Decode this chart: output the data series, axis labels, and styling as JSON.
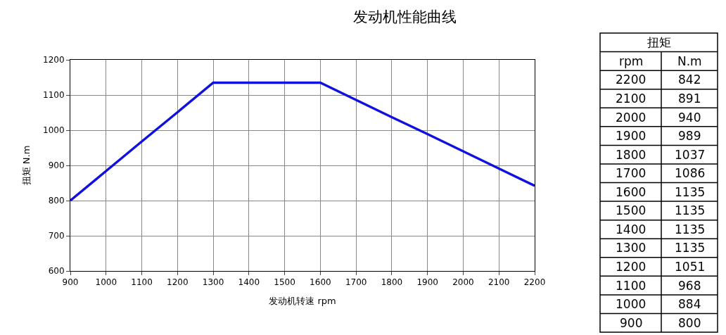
{
  "chart_data": [
    {
      "type": "line",
      "title": "发动机性能曲线",
      "xlabel": "发动机转速 rpm",
      "ylabel": "扭矩 N.m",
      "x": [
        900,
        1000,
        1100,
        1200,
        1300,
        1400,
        1500,
        1600,
        1700,
        1800,
        1900,
        2000,
        2100,
        2200
      ],
      "series": [
        {
          "color": "#1010e0",
          "values": [
            800,
            884,
            968,
            1051,
            1135,
            1135,
            1135,
            1135,
            1086,
            1037,
            989,
            940,
            891,
            842
          ]
        }
      ],
      "xlim": [
        900,
        2200
      ],
      "xticks": [
        900,
        1000,
        1100,
        1200,
        1300,
        1400,
        1500,
        1600,
        1700,
        1800,
        1900,
        2000,
        2100,
        2200
      ],
      "ylim": [
        600,
        1200
      ],
      "yticks": [
        600,
        700,
        800,
        900,
        1000,
        1100,
        1200
      ],
      "grid": true,
      "marker": "none",
      "line_style": "solid"
    },
    {
      "type": "heatmap",
      "title": "扭矩",
      "ylabel": "rpm",
      "categories": [
        "N.m"
      ],
      "y_categories": [
        "2200",
        "2100",
        "2000",
        "1900",
        "1800",
        "1700",
        "1600",
        "1500",
        "1400",
        "1300",
        "1200",
        "1100",
        "1000",
        "900"
      ],
      "cells": [
        [
          842
        ],
        [
          891
        ],
        [
          940
        ],
        [
          989
        ],
        [
          1037
        ],
        [
          1086
        ],
        [
          1135
        ],
        [
          1135
        ],
        [
          1135
        ],
        [
          1135
        ],
        [
          1051
        ],
        [
          968
        ],
        [
          884
        ],
        [
          800
        ]
      ],
      "data_labels": true
    }
  ]
}
